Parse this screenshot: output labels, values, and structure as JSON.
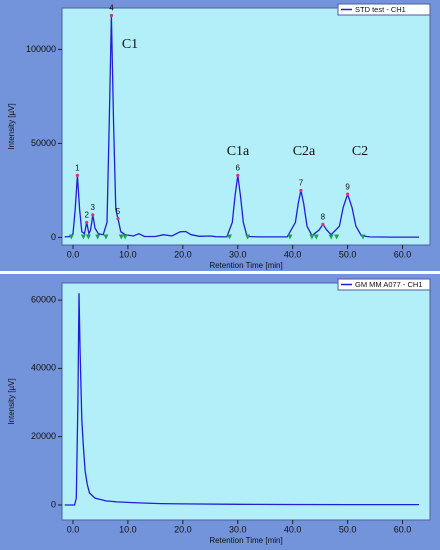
{
  "chart_data": [
    {
      "type": "line",
      "xlabel": "Retention Time [min]",
      "ylabel": "Intensity [µV]",
      "xlim": [
        -2,
        65
      ],
      "ylim": [
        -4000,
        122000
      ],
      "xticks": [
        {
          "value": 0,
          "label": "0.0"
        },
        {
          "value": 10,
          "label": "10.0"
        },
        {
          "value": 20,
          "label": "20.0"
        },
        {
          "value": 30,
          "label": "30.0"
        },
        {
          "value": 40,
          "label": "40.0"
        },
        {
          "value": 50,
          "label": "50.0"
        },
        {
          "value": 60,
          "label": "60.0"
        }
      ],
      "yticks": [
        0,
        50000,
        100000
      ],
      "legend": "upper right",
      "x": [
        -1.5,
        -0.5,
        0,
        0.4,
        0.8,
        1.2,
        1.6,
        2.1,
        2.5,
        2.9,
        3.2,
        3.6,
        4.0,
        4.6,
        5.5,
        6.2,
        6.6,
        7.0,
        7.4,
        7.8,
        8.2,
        8.7,
        9.5,
        11,
        12,
        13,
        15,
        16.5,
        18,
        19.5,
        20.5,
        21.5,
        23,
        25,
        26,
        28,
        29,
        29.5,
        30,
        30.5,
        31,
        31.7,
        34,
        39,
        40.5,
        41,
        41.5,
        42,
        42.6,
        43.5,
        44.8,
        45.5,
        46.2,
        47,
        48.5,
        49.2,
        50,
        50.8,
        51.5,
        52.5,
        54,
        58,
        63
      ],
      "series": [
        {
          "name": "STD test - CH1",
          "color": "#1f1fd8",
          "values": [
            300,
            500,
            2000,
            15000,
            33000,
            15000,
            3000,
            2000,
            8000,
            2000,
            4000,
            12000,
            5000,
            2000,
            1500,
            8000,
            60000,
            118000,
            60000,
            15000,
            10000,
            3000,
            1500,
            800,
            2000,
            500,
            500,
            1500,
            800,
            3000,
            3200,
            1500,
            600,
            800,
            400,
            300,
            8000,
            22000,
            33000,
            22000,
            8000,
            500,
            300,
            300,
            8000,
            18000,
            25000,
            18000,
            6000,
            1000,
            4000,
            7000,
            4000,
            1500,
            6000,
            16000,
            23000,
            16000,
            6000,
            1000,
            300,
            200,
            200
          ]
        }
      ],
      "peak_labels": [
        {
          "text": "1",
          "x": 0.8,
          "y": 33000
        },
        {
          "text": "2",
          "x": 2.5,
          "y": 8000
        },
        {
          "text": "3",
          "x": 3.6,
          "y": 12000
        },
        {
          "text": "4",
          "x": 7.0,
          "y": 118000
        },
        {
          "text": "5",
          "x": 8.2,
          "y": 10000
        },
        {
          "text": "6",
          "x": 30,
          "y": 33000
        },
        {
          "text": "7",
          "x": 41.5,
          "y": 25000
        },
        {
          "text": "8",
          "x": 45.5,
          "y": 7000
        },
        {
          "text": "9",
          "x": 50,
          "y": 23000
        }
      ],
      "baseline_markers": [
        -0.3,
        1.9,
        2.8,
        4.5,
        6.0,
        8.8,
        9.5,
        28.5,
        31.8,
        39.5,
        43.5,
        44.3,
        47.0,
        48.0,
        52.8
      ],
      "compound_labels": [
        "C1",
        "C1a",
        "C2a",
        "C2"
      ]
    },
    {
      "type": "line",
      "xlabel": "Retention Time [min]",
      "ylabel": "Intensity [µV]",
      "xlim": [
        -2,
        65
      ],
      "ylim": [
        -4400,
        65000
      ],
      "xticks": [
        {
          "value": 0,
          "label": "0.0"
        },
        {
          "value": 10,
          "label": "10.0"
        },
        {
          "value": 20,
          "label": "20.0"
        },
        {
          "value": 30,
          "label": "30.0"
        },
        {
          "value": 40,
          "label": "40.0"
        },
        {
          "value": 50,
          "label": "50.0"
        },
        {
          "value": 60,
          "label": "60.0"
        }
      ],
      "yticks": [
        0,
        20000,
        40000,
        60000
      ],
      "legend": "upper right",
      "x": [
        -1.5,
        0.3,
        0.6,
        0.9,
        1.1,
        1.3,
        1.6,
        1.9,
        2.2,
        2.6,
        3.0,
        4,
        6,
        8,
        12,
        16,
        20,
        30,
        40,
        50,
        63
      ],
      "series": [
        {
          "name": "GM MM A077 - CH1",
          "color": "#1f1fd8",
          "values": [
            0,
            0,
            2000,
            30000,
            62000,
            45000,
            25000,
            17000,
            10000,
            6000,
            3500,
            2000,
            1200,
            900,
            600,
            400,
            300,
            200,
            150,
            100,
            100
          ]
        }
      ]
    }
  ]
}
